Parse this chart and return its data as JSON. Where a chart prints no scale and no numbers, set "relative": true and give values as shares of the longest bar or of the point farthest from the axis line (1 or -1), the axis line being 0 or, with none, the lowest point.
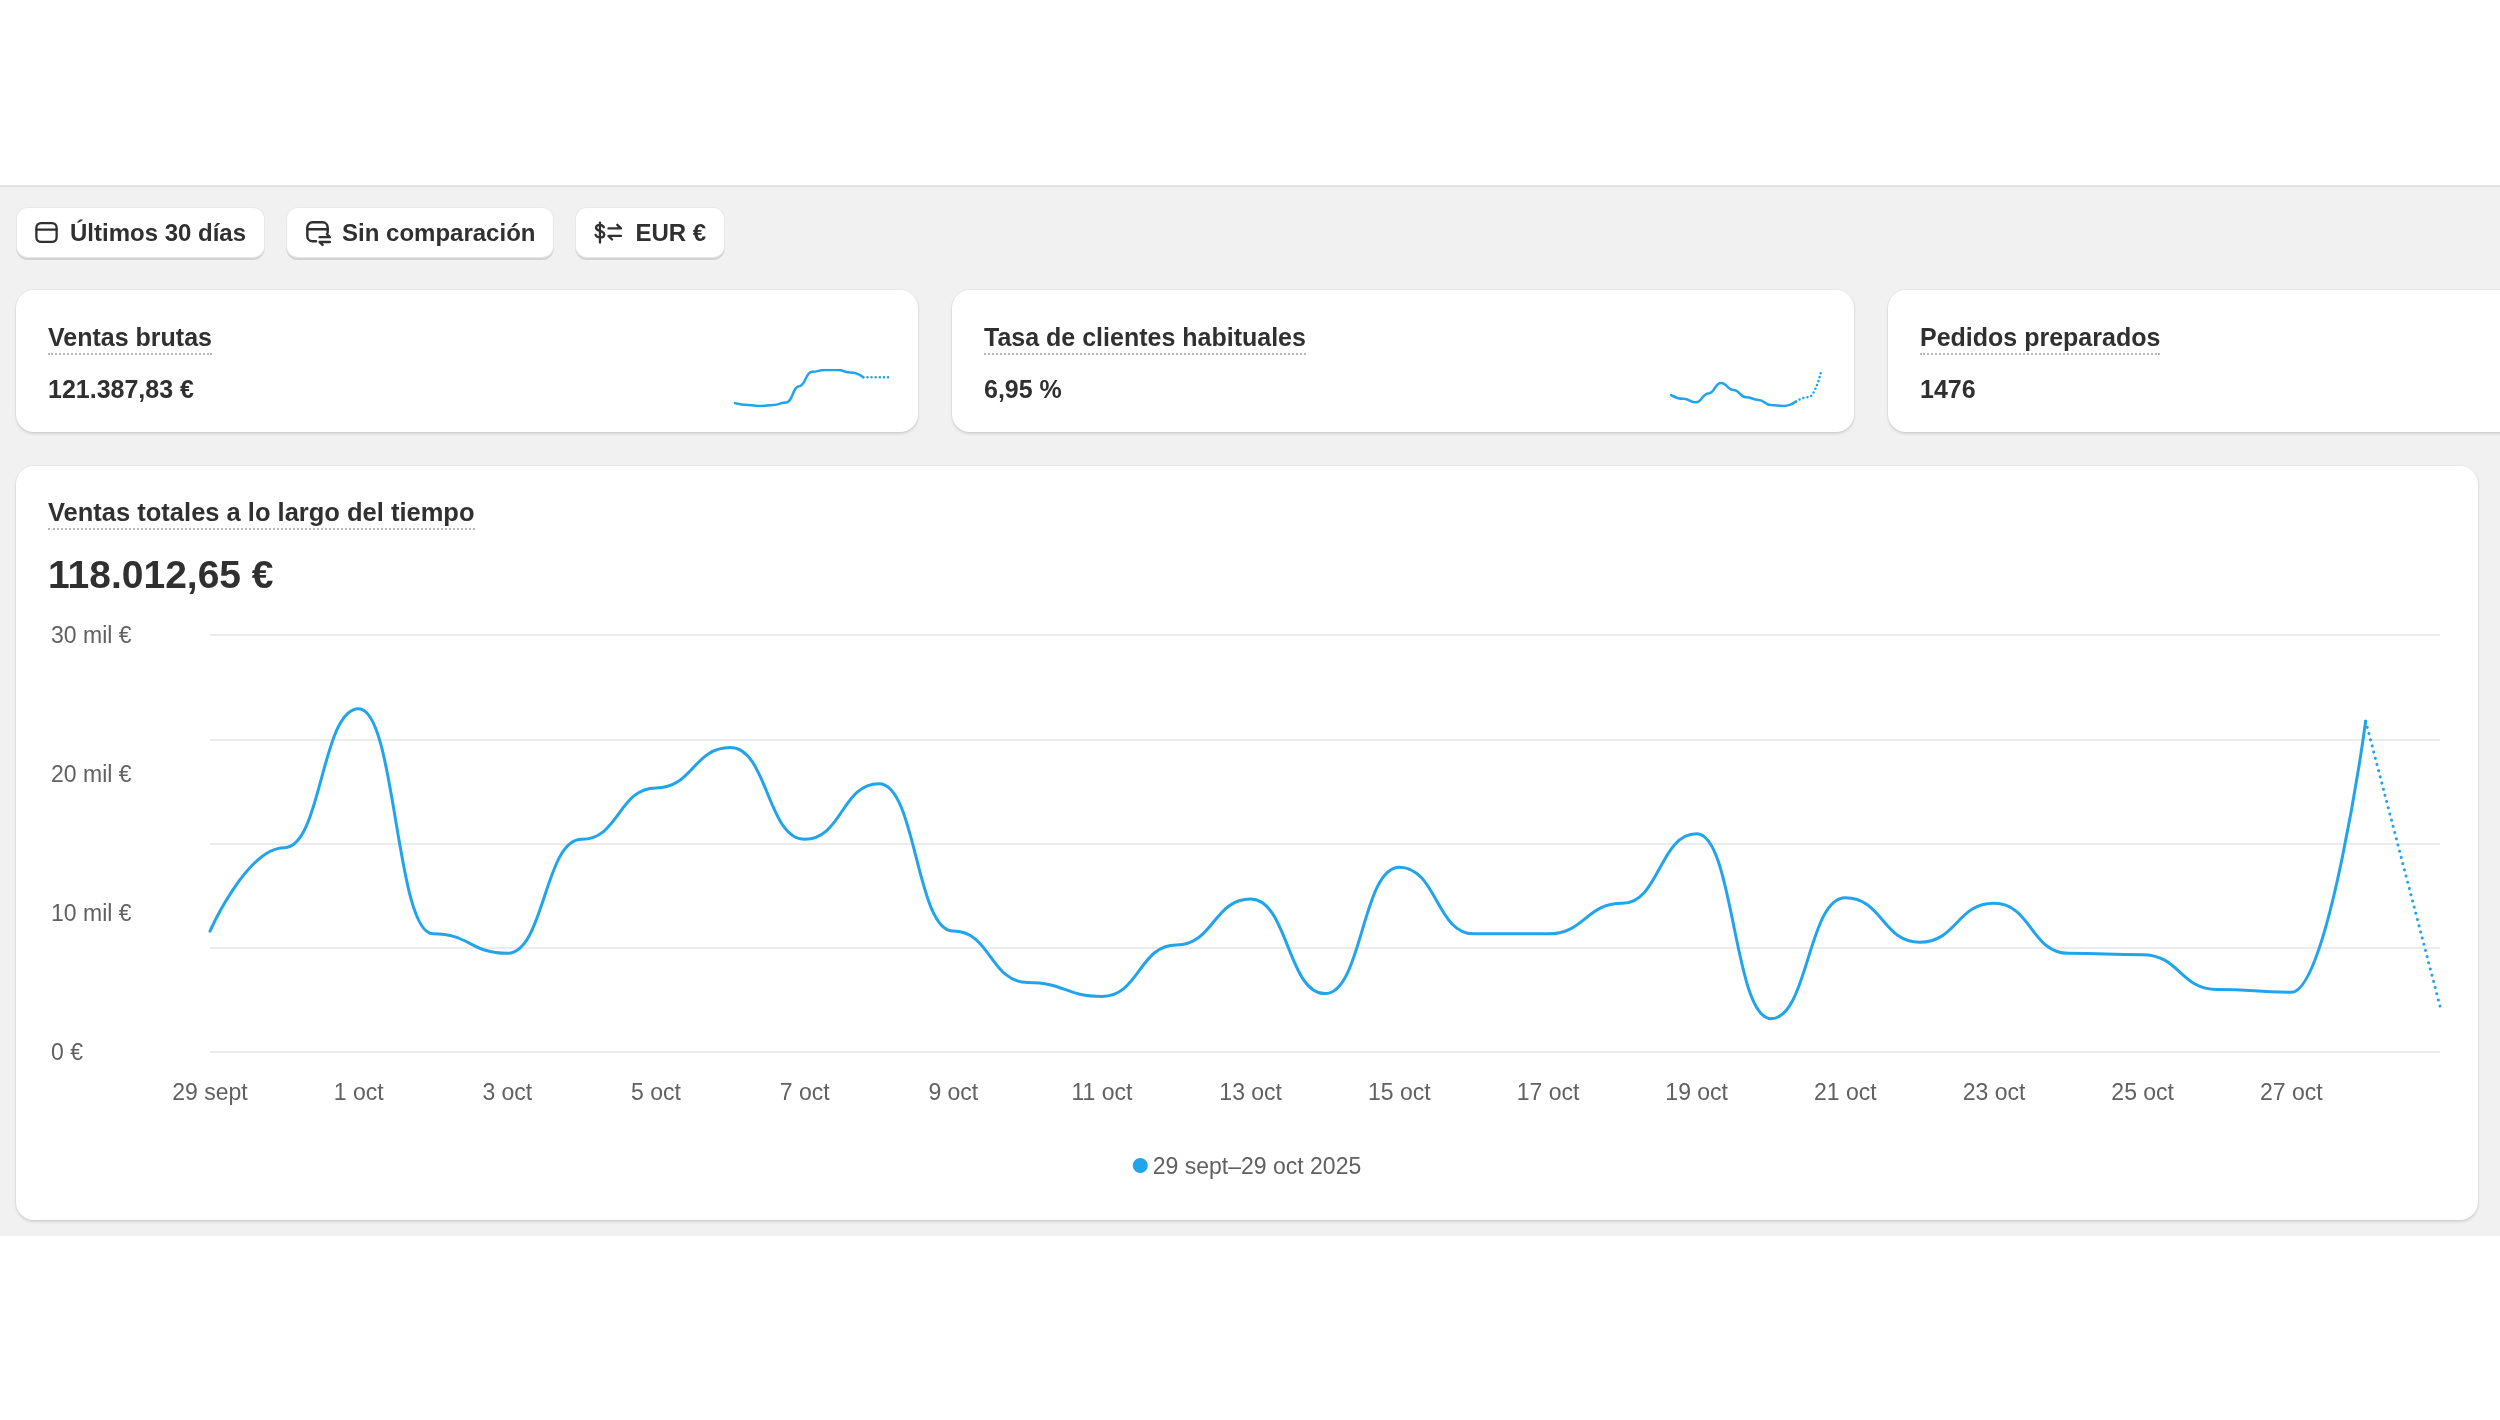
{
  "chart_data": [
    {
      "type": "other",
      "annotations": [
        "Últimos 30 días",
        "Sin comparación",
        "EUR €"
      ]
    },
    {
      "type": "other",
      "title": "Ventas brutas",
      "subtitle": "121.387,83 €"
    },
    {
      "type": "line",
      "relative": true,
      "categories": [
        null,
        null,
        null,
        null,
        null,
        null,
        null,
        null,
        null,
        null,
        null,
        null,
        null
      ],
      "series": [
        {
          "color": "#21a4ec",
          "values": [
            0.08,
            0.03,
            0,
            0.03,
            0.1,
            0.55,
            0.95,
            1,
            1,
            0.93,
            0.8,
            null,
            null
          ]
        },
        {
          "color": "#21a4ec",
          "line_style": "dotted",
          "values": [
            null,
            null,
            null,
            null,
            null,
            null,
            null,
            null,
            null,
            null,
            0.8,
            0.8,
            0.8
          ]
        }
      ],
      "line_style": "solid",
      "marker": "none"
    },
    {
      "type": "other",
      "title": "Tasa de clientes habituales",
      "subtitle": "6,95 %"
    },
    {
      "type": "line",
      "relative": true,
      "categories": [
        null,
        null,
        null,
        null,
        null,
        null,
        null,
        null,
        null,
        null,
        null,
        null,
        null
      ],
      "series": [
        {
          "color": "#21a4ec",
          "values": [
            0.32,
            0.21,
            0.11,
            0.37,
            0.68,
            0.47,
            0.26,
            0.18,
            0.03,
            0,
            0.13,
            null,
            null
          ]
        },
        {
          "color": "#21a4ec",
          "line_style": "dotted",
          "values": [
            null,
            null,
            null,
            null,
            null,
            null,
            null,
            null,
            null,
            null,
            0.13,
            0.26,
            1
          ]
        }
      ],
      "line_style": "solid",
      "marker": "none"
    },
    {
      "type": "other",
      "title": "Pedidos preparados",
      "subtitle": "1476"
    },
    {
      "type": "line",
      "title": "Ventas totales a lo largo del tiempo",
      "subtitle": "118.012,65 €",
      "categories": [
        "29 sept",
        null,
        "1 oct",
        null,
        "3 oct",
        null,
        "5 oct",
        null,
        "7 oct",
        null,
        "9 oct",
        null,
        "11 oct",
        null,
        "13 oct",
        null,
        "15 oct",
        null,
        "17 oct",
        null,
        "19 oct",
        null,
        "21 oct",
        null,
        "23 oct",
        null,
        "25 oct",
        null,
        "27 oct",
        null,
        null
      ],
      "series": [
        {
          "name": "29 sept–29 oct 2025",
          "color": "#21a4ec",
          "values": [
            8.7,
            14.7,
            24.7,
            8.5,
            7.1,
            15.3,
            19.0,
            21.9,
            15.3,
            19.3,
            8.7,
            5.0,
            4.0,
            7.7,
            11.0,
            4.2,
            13.3,
            8.5,
            8.5,
            10.7,
            15.7,
            2.4,
            11.1,
            7.9,
            10.7,
            7.1,
            7.0,
            4.5,
            4.3,
            23.8,
            null
          ]
        },
        {
          "color": "#21a4ec",
          "line_style": "dotted",
          "values": [
            null,
            null,
            null,
            null,
            null,
            null,
            null,
            null,
            null,
            null,
            null,
            null,
            null,
            null,
            null,
            null,
            null,
            null,
            null,
            null,
            null,
            null,
            null,
            null,
            null,
            null,
            null,
            null,
            null,
            23.8,
            3.3
          ]
        }
      ],
      "ylim": [
        0,
        30
      ],
      "yticks": [
        {
          "value": 0,
          "label": "0 €"
        },
        {
          "value": 7.5,
          "label": null
        },
        {
          "value": 10,
          "label": "10 mil €"
        },
        {
          "value": 15,
          "label": null
        },
        {
          "value": 20,
          "label": "20 mil €"
        },
        {
          "value": 22.5,
          "label": null
        },
        {
          "value": 30,
          "label": "30 mil €"
        }
      ],
      "grid": "y",
      "legend": "bottom",
      "line_style": "solid",
      "marker": "none"
    }
  ]
}
